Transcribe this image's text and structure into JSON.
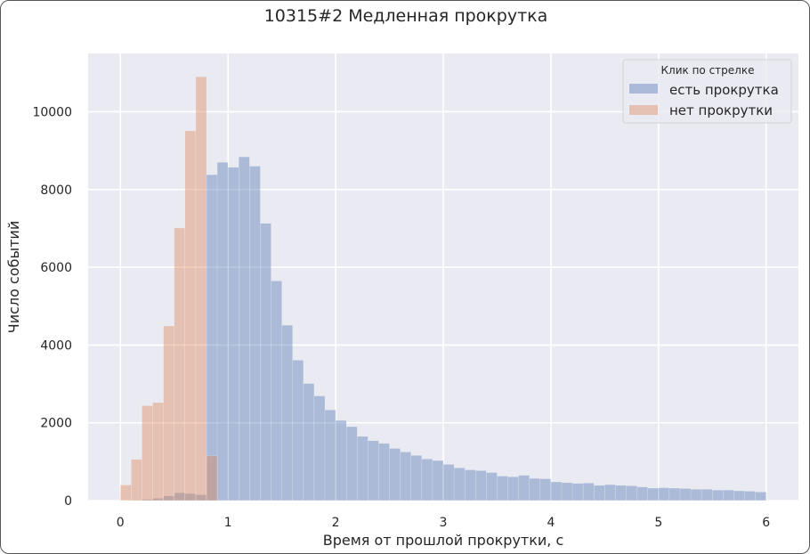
{
  "chart_data": {
    "type": "bar",
    "title": "10315#2 Медленная прокрутка",
    "xlabel": "Время от прошлой прокрутки, с",
    "ylabel": "Число событий",
    "xlim": [
      -0.3,
      6.3
    ],
    "ylim": [
      0,
      11500
    ],
    "xticks": [
      0,
      1,
      2,
      3,
      4,
      5,
      6
    ],
    "yticks": [
      0,
      2000,
      4000,
      6000,
      8000,
      10000
    ],
    "grid": true,
    "bin_width": 0.1,
    "bin_starts": [
      0.0,
      0.1,
      0.2,
      0.3,
      0.4,
      0.5,
      0.6,
      0.7,
      0.8,
      0.9,
      1.0,
      1.1,
      1.2,
      1.3,
      1.4,
      1.5,
      1.6,
      1.7,
      1.8,
      1.9,
      2.0,
      2.1,
      2.2,
      2.3,
      2.4,
      2.5,
      2.6,
      2.7,
      2.8,
      2.9,
      3.0,
      3.1,
      3.2,
      3.3,
      3.4,
      3.5,
      3.6,
      3.7,
      3.8,
      3.9,
      4.0,
      4.1,
      4.2,
      4.3,
      4.4,
      4.5,
      4.6,
      4.7,
      4.8,
      4.9,
      5.0,
      5.1,
      5.2,
      5.3,
      5.4,
      5.5,
      5.6,
      5.7,
      5.8,
      5.9
    ],
    "legend": {
      "title": "Клик по стрелке",
      "position": "top-right"
    },
    "series": [
      {
        "name": "есть прокрутка",
        "color": "#4c72b0",
        "values": [
          0,
          10,
          30,
          60,
          120,
          200,
          180,
          150,
          8380,
          8700,
          8570,
          8840,
          8600,
          7130,
          5650,
          4510,
          3610,
          3010,
          2690,
          2330,
          2060,
          1900,
          1650,
          1540,
          1470,
          1340,
          1250,
          1160,
          1070,
          1030,
          930,
          840,
          790,
          770,
          720,
          630,
          610,
          650,
          570,
          560,
          480,
          460,
          440,
          450,
          390,
          410,
          390,
          380,
          350,
          320,
          330,
          320,
          310,
          290,
          290,
          270,
          270,
          250,
          240,
          220
        ]
      },
      {
        "name": "нет прокрутки",
        "color": "#dd8452",
        "values": [
          400,
          1060,
          2440,
          2520,
          4490,
          7010,
          9510,
          10900,
          1150,
          0,
          0,
          0,
          0,
          0,
          0,
          0,
          0,
          0,
          0,
          0,
          0,
          0,
          0,
          0,
          0,
          0,
          0,
          0,
          0,
          0,
          0,
          0,
          0,
          0,
          0,
          0,
          0,
          0,
          0,
          0,
          0,
          0,
          0,
          0,
          0,
          0,
          0,
          0,
          0,
          0,
          0,
          0,
          0,
          0,
          0,
          0,
          0,
          0,
          0,
          0
        ]
      }
    ]
  }
}
